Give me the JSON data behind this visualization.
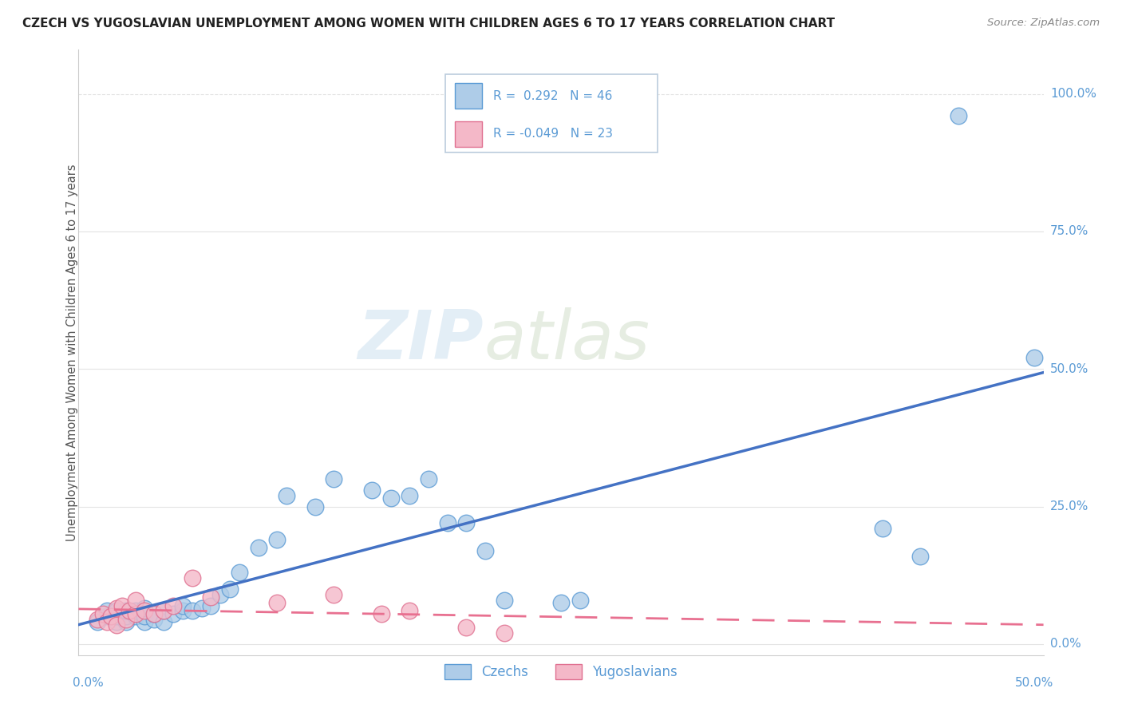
{
  "title": "CZECH VS YUGOSLAVIAN UNEMPLOYMENT AMONG WOMEN WITH CHILDREN AGES 6 TO 17 YEARS CORRELATION CHART",
  "source": "Source: ZipAtlas.com",
  "ylabel": "Unemployment Among Women with Children Ages 6 to 17 years",
  "ytick_labels": [
    "0.0%",
    "25.0%",
    "50.0%",
    "75.0%",
    "100.0%"
  ],
  "ytick_values": [
    0.0,
    0.25,
    0.5,
    0.75,
    1.0
  ],
  "czech_r": 0.292,
  "czech_n": 46,
  "yugo_r": -0.049,
  "yugo_n": 23,
  "legend_czech": "Czechs",
  "legend_yugo": "Yugoslavians",
  "czech_color": "#aecce8",
  "czech_edge_color": "#5b9bd5",
  "yugo_color": "#f4b8c8",
  "yugo_edge_color": "#e07090",
  "czech_line_color": "#4472c4",
  "yugo_line_color": "#e87090",
  "watermark_zip_color": "#cce0f0",
  "watermark_atlas_color": "#d0e0c8",
  "background_color": "#ffffff",
  "title_color": "#222222",
  "axis_label_color": "#5b9bd5",
  "grid_color": "#d8d8d8",
  "czech_x": [
    0.005,
    0.01,
    0.01,
    0.015,
    0.015,
    0.015,
    0.02,
    0.02,
    0.02,
    0.025,
    0.025,
    0.03,
    0.03,
    0.03,
    0.035,
    0.035,
    0.04,
    0.04,
    0.045,
    0.05,
    0.05,
    0.055,
    0.06,
    0.065,
    0.07,
    0.075,
    0.08,
    0.09,
    0.1,
    0.105,
    0.12,
    0.13,
    0.15,
    0.16,
    0.17,
    0.18,
    0.19,
    0.2,
    0.21,
    0.22,
    0.25,
    0.26,
    0.42,
    0.44,
    0.46,
    0.5
  ],
  "czech_y": [
    0.04,
    0.05,
    0.06,
    0.04,
    0.05,
    0.06,
    0.04,
    0.05,
    0.06,
    0.05,
    0.06,
    0.04,
    0.05,
    0.065,
    0.045,
    0.055,
    0.04,
    0.06,
    0.055,
    0.06,
    0.07,
    0.06,
    0.065,
    0.07,
    0.09,
    0.1,
    0.13,
    0.175,
    0.19,
    0.27,
    0.25,
    0.3,
    0.28,
    0.265,
    0.27,
    0.3,
    0.22,
    0.22,
    0.17,
    0.08,
    0.075,
    0.08,
    0.21,
    0.16,
    0.96,
    0.52
  ],
  "yugo_x": [
    0.005,
    0.008,
    0.01,
    0.012,
    0.015,
    0.015,
    0.018,
    0.02,
    0.022,
    0.025,
    0.025,
    0.03,
    0.035,
    0.04,
    0.045,
    0.055,
    0.065,
    0.1,
    0.13,
    0.155,
    0.17,
    0.2,
    0.22
  ],
  "yugo_y": [
    0.045,
    0.055,
    0.04,
    0.05,
    0.035,
    0.065,
    0.07,
    0.045,
    0.06,
    0.055,
    0.08,
    0.06,
    0.055,
    0.06,
    0.07,
    0.12,
    0.085,
    0.075,
    0.09,
    0.055,
    0.06,
    0.03,
    0.02
  ]
}
